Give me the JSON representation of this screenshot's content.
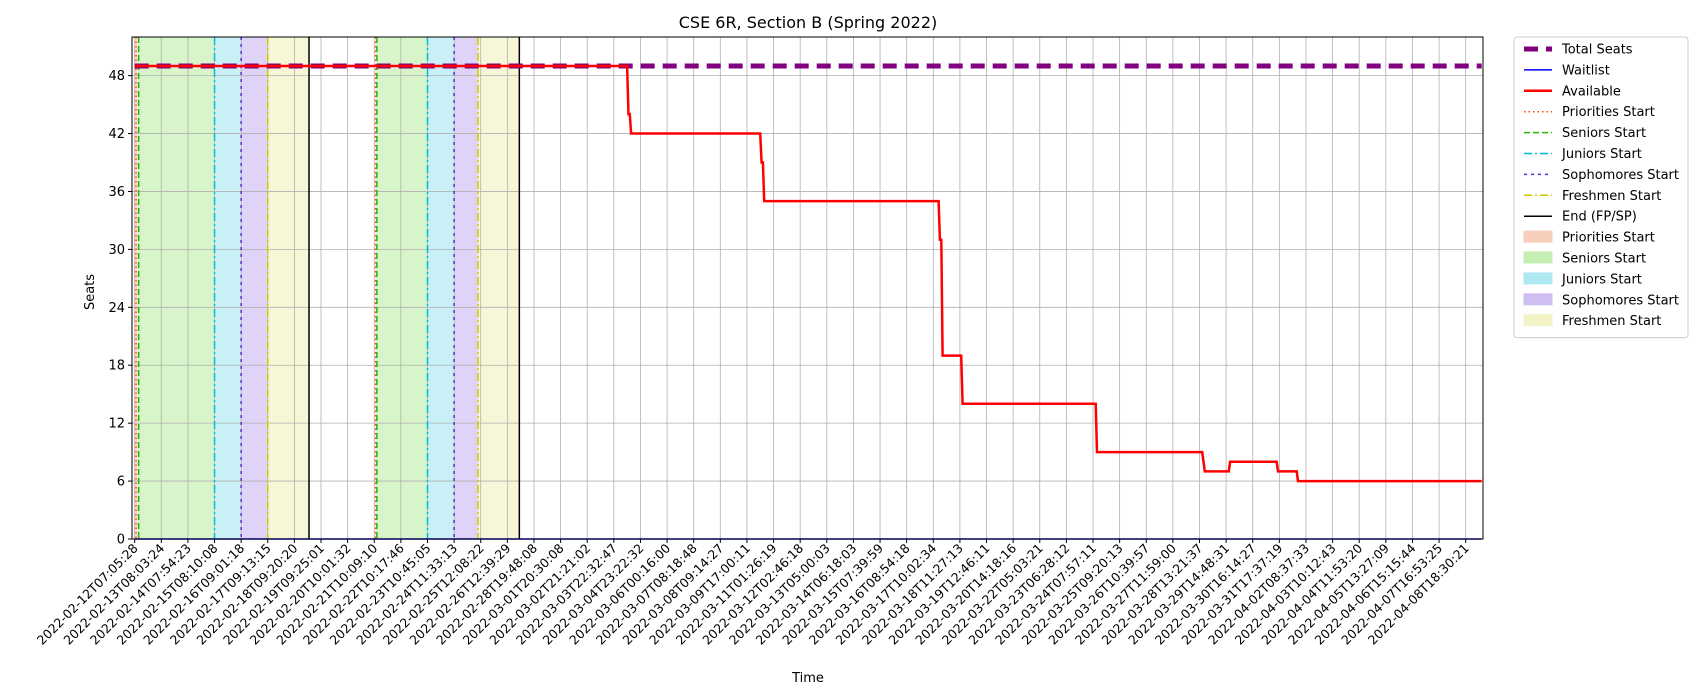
{
  "chart_data": {
    "type": "line",
    "title": "CSE 6R, Section B (Spring 2022)",
    "xlabel": "Time",
    "ylabel": "Seats",
    "ylim": [
      0,
      52
    ],
    "yticks": [
      0,
      6,
      12,
      18,
      24,
      30,
      36,
      42,
      48
    ],
    "grid": true,
    "legend_position": "outside-right",
    "x_tick_labels": [
      "2022-02-12T07:05:28",
      "2022-02-13T08:03:24",
      "2022-02-14T07:54:23",
      "2022-02-15T08:10:08",
      "2022-02-16T09:01:18",
      "2022-02-17T09:13:15",
      "2022-02-18T09:20:20",
      "2022-02-19T09:25:01",
      "2022-02-20T10:01:32",
      "2022-02-21T10:09:10",
      "2022-02-22T10:17:46",
      "2022-02-23T10:45:05",
      "2022-02-24T11:33:13",
      "2022-02-25T12:08:22",
      "2022-02-26T12:39:29",
      "2022-02-28T19:48:08",
      "2022-03-01T20:30:08",
      "2022-03-02T21:21:02",
      "2022-03-03T22:32:47",
      "2022-03-04T23:22:32",
      "2022-03-06T00:16:00",
      "2022-03-07T08:18:48",
      "2022-03-08T09:14:27",
      "2022-03-09T17:00:11",
      "2022-03-11T01:26:19",
      "2022-03-12T02:46:18",
      "2022-03-13T05:00:03",
      "2022-03-14T06:18:03",
      "2022-03-15T07:39:59",
      "2022-03-16T08:54:18",
      "2022-03-17T10:02:34",
      "2022-03-18T11:27:13",
      "2022-03-19T12:46:11",
      "2022-03-20T14:18:16",
      "2022-03-22T05:03:21",
      "2022-03-23T06:28:12",
      "2022-03-24T07:57:11",
      "2022-03-25T09:20:13",
      "2022-03-26T10:39:57",
      "2022-03-27T11:59:00",
      "2022-03-28T13:21:37",
      "2022-03-29T14:48:31",
      "2022-03-30T16:14:27",
      "2022-03-31T17:37:19",
      "2022-04-02T08:37:33",
      "2022-04-03T10:12:43",
      "2022-04-04T11:53:20",
      "2022-04-05T13:27:09",
      "2022-04-06T15:15:44",
      "2022-04-07T16:53:25",
      "2022-04-08T18:30:21"
    ],
    "series": [
      {
        "name": "Total Seats",
        "color": "#800080",
        "style": "dashed-thick",
        "points": [
          [
            0,
            49
          ],
          [
            50.6,
            49
          ]
        ]
      },
      {
        "name": "Waitlist",
        "color": "#0000ff",
        "style": "solid",
        "points": [
          [
            0,
            0
          ],
          [
            50.6,
            0
          ]
        ]
      },
      {
        "name": "Available",
        "color": "#ff0000",
        "style": "solid",
        "points": [
          [
            0,
            49
          ],
          [
            18.5,
            49
          ],
          [
            18.55,
            44
          ],
          [
            18.6,
            44
          ],
          [
            18.65,
            42
          ],
          [
            23.5,
            42
          ],
          [
            23.55,
            39
          ],
          [
            23.6,
            39
          ],
          [
            23.65,
            35
          ],
          [
            30.2,
            35
          ],
          [
            30.25,
            31
          ],
          [
            30.3,
            31
          ],
          [
            30.35,
            19
          ],
          [
            31.05,
            19
          ],
          [
            31.1,
            14
          ],
          [
            36.1,
            14
          ],
          [
            36.15,
            9
          ],
          [
            40.1,
            9
          ],
          [
            40.15,
            8
          ],
          [
            40.2,
            7
          ],
          [
            41.1,
            7
          ],
          [
            41.15,
            8
          ],
          [
            42.9,
            8
          ],
          [
            42.95,
            7
          ],
          [
            43.65,
            7
          ],
          [
            43.7,
            6
          ],
          [
            50.6,
            6
          ]
        ]
      }
    ],
    "phase_lines": [
      {
        "name": "Priorities Start",
        "color": "#ff4500",
        "style": "dotted",
        "x": [
          0.05,
          9.05
        ]
      },
      {
        "name": "Seniors Start",
        "color": "#22bb00",
        "style": "dashed",
        "x": [
          0.15,
          9.1
        ]
      },
      {
        "name": "Juniors Start",
        "color": "#00bcd4",
        "style": "dashdot",
        "x": [
          3.0,
          11.0
        ]
      },
      {
        "name": "Sophomores Start",
        "color": "#5a2dd6",
        "style": "densedash",
        "x": [
          4.0,
          12.0
        ]
      },
      {
        "name": "Freshmen Start",
        "color": "#d4c800",
        "style": "dashdot",
        "x": [
          5.0,
          12.9
        ]
      },
      {
        "name": "End (FP/SP)",
        "color": "#000000",
        "style": "solid",
        "x": [
          6.55,
          14.45
        ]
      }
    ],
    "phase_spans": [
      {
        "name": "Priorities Start",
        "color": "#f4c2a8",
        "ranges": [
          [
            0,
            0.15
          ],
          [
            9.05,
            9.1
          ]
        ]
      },
      {
        "name": "Seniors Start",
        "color": "#b6eba0",
        "ranges": [
          [
            0.15,
            3.0
          ],
          [
            9.1,
            11.0
          ]
        ]
      },
      {
        "name": "Juniors Start",
        "color": "#9be4ee",
        "ranges": [
          [
            3.0,
            4.0
          ],
          [
            11.0,
            12.0
          ]
        ]
      },
      {
        "name": "Sophomores Start",
        "color": "#c4aef0",
        "ranges": [
          [
            4.0,
            5.0
          ],
          [
            12.0,
            12.9
          ]
        ]
      },
      {
        "name": "Freshmen Start",
        "color": "#f1f0b8",
        "ranges": [
          [
            5.0,
            6.55
          ],
          [
            12.9,
            14.45
          ]
        ]
      }
    ],
    "legend": [
      {
        "label": "Total Seats",
        "kind": "line",
        "color": "#800080",
        "style": "dashed-thick"
      },
      {
        "label": "Waitlist",
        "kind": "line",
        "color": "#0000ff",
        "style": "solid"
      },
      {
        "label": "Available",
        "kind": "line",
        "color": "#ff0000",
        "style": "solid-thick"
      },
      {
        "label": "Priorities Start",
        "kind": "line",
        "color": "#ff4500",
        "style": "dotted"
      },
      {
        "label": "Seniors Start",
        "kind": "line",
        "color": "#22bb00",
        "style": "dashed"
      },
      {
        "label": "Juniors Start",
        "kind": "line",
        "color": "#00bcd4",
        "style": "dashdot"
      },
      {
        "label": "Sophomores Start",
        "kind": "line",
        "color": "#5a2dd6",
        "style": "densedash"
      },
      {
        "label": "Freshmen Start",
        "kind": "line",
        "color": "#d4c800",
        "style": "dashdot"
      },
      {
        "label": "End (FP/SP)",
        "kind": "line",
        "color": "#000000",
        "style": "solid"
      },
      {
        "label": "Priorities Start",
        "kind": "patch",
        "color": "#f4c2a8"
      },
      {
        "label": "Seniors Start",
        "kind": "patch",
        "color": "#b6eba0"
      },
      {
        "label": "Juniors Start",
        "kind": "patch",
        "color": "#9be4ee"
      },
      {
        "label": "Sophomores Start",
        "kind": "patch",
        "color": "#c4aef0"
      },
      {
        "label": "Freshmen Start",
        "kind": "patch",
        "color": "#f1f0b8"
      }
    ]
  }
}
